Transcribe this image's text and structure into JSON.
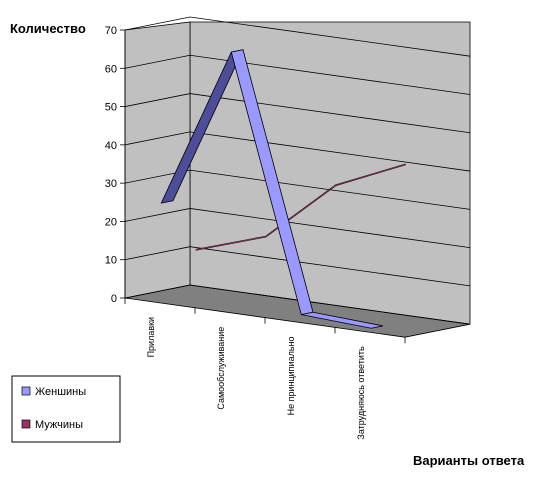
{
  "chart_data": {
    "type": "line",
    "style": "3d",
    "ylabel": "Количество",
    "xlabel": "Варианты ответа",
    "ylim": [
      0,
      70
    ],
    "yticks": [
      0,
      10,
      20,
      30,
      40,
      50,
      60,
      70
    ],
    "categories": [
      "Прилавки",
      "Самообслуживание",
      "Не принципиально",
      "Затрудняюсь ответить"
    ],
    "series": [
      {
        "name": "Женшины",
        "values": [
          26,
          68,
          2,
          1
        ],
        "color": "#9999ff"
      },
      {
        "name": "Мужчины",
        "values": [
          12,
          18,
          34,
          42
        ],
        "color": "#993366"
      }
    ],
    "grid": true,
    "legend": "bottom-left",
    "colors": {
      "back_wall": "#c0c0c0",
      "floor": "#808080"
    }
  }
}
